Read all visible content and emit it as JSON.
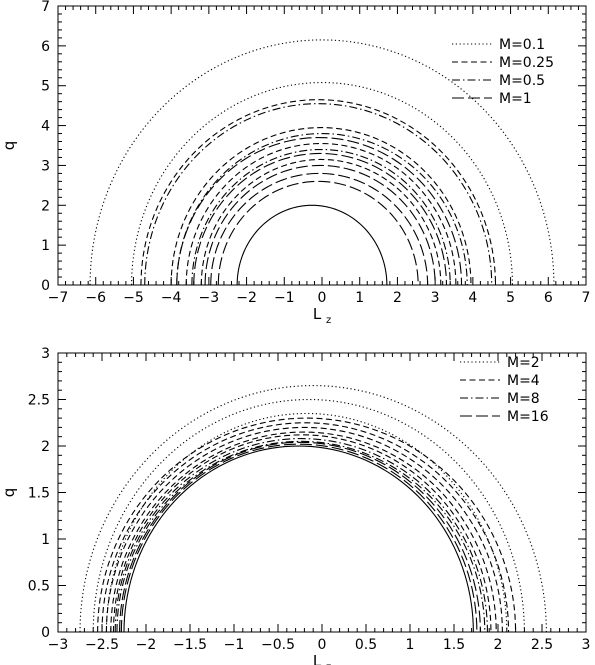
{
  "chart_data": [
    {
      "type": "line",
      "xlabel": "L",
      "xlabel_sub": "z",
      "ylabel": "q",
      "xlim": [
        -7,
        7
      ],
      "ylim": [
        0,
        7
      ],
      "xticks": [
        -7,
        -6,
        -5,
        -4,
        -3,
        -2,
        -1,
        0,
        1,
        2,
        3,
        4,
        5,
        6,
        7
      ],
      "yticks": [
        0,
        1,
        2,
        3,
        4,
        5,
        6,
        7
      ],
      "xtick_labels": [
        "−7",
        "−6",
        "−5",
        "−4",
        "−3",
        "−2",
        "−1",
        "0",
        "1",
        "2",
        "3",
        "4",
        "5",
        "6",
        "7"
      ],
      "ytick_labels": [
        "0",
        "1",
        "2",
        "3",
        "4",
        "5",
        "6",
        "7"
      ],
      "legend_position": "top-right",
      "series": [
        {
          "name": "M=0.1",
          "style": "dotted",
          "curves": [
            {
              "xmin": -6.15,
              "xmax": 6.15,
              "ymax": 6.15
            },
            {
              "xmin": -5.05,
              "xmax": 5.05,
              "ymax": 5.08
            }
          ]
        },
        {
          "name": "M=0.25",
          "style": "dashed",
          "curves": [
            {
              "xmin": -4.8,
              "xmax": 4.6,
              "ymax": 4.65
            },
            {
              "xmin": -4.0,
              "xmax": 3.95,
              "ymax": 3.95
            },
            {
              "xmin": -3.6,
              "xmax": 3.55,
              "ymax": 3.55
            },
            {
              "xmin": -3.2,
              "xmax": 3.15,
              "ymax": 3.15
            }
          ]
        },
        {
          "name": "M=0.5",
          "style": "dashdot",
          "curves": [
            {
              "xmin": -4.7,
              "xmax": 4.5,
              "ymax": 4.55
            },
            {
              "xmin": -3.85,
              "xmax": 3.85,
              "ymax": 3.8
            },
            {
              "xmin": -3.45,
              "xmax": 3.4,
              "ymax": 3.4
            }
          ]
        },
        {
          "name": "M=1",
          "style": "longdash",
          "curves": [
            {
              "xmin": -3.85,
              "xmax": 3.7,
              "ymax": 3.7
            },
            {
              "xmin": -3.4,
              "xmax": 3.3,
              "ymax": 3.3
            },
            {
              "xmin": -3.1,
              "xmax": 3.0,
              "ymax": 3.0
            },
            {
              "xmin": -2.95,
              "xmax": 2.8,
              "ymax": 2.8
            },
            {
              "xmin": -2.75,
              "xmax": 2.55,
              "ymax": 2.6
            }
          ]
        },
        {
          "name": "",
          "style": "solid",
          "curves": [
            {
              "xmin": -2.25,
              "xmax": 1.72,
              "ymax": 2.0
            }
          ]
        }
      ]
    },
    {
      "type": "line",
      "xlabel": "L",
      "xlabel_sub": "z",
      "ylabel": "q",
      "xlim": [
        -3,
        3
      ],
      "ylim": [
        0,
        3
      ],
      "xticks": [
        -3,
        -2.5,
        -2,
        -1.5,
        -1,
        -0.5,
        0,
        0.5,
        1,
        1.5,
        2,
        2.5,
        3
      ],
      "yticks": [
        0,
        0.5,
        1,
        1.5,
        2,
        2.5,
        3
      ],
      "xtick_labels": [
        "−3",
        "−2.5",
        "−2",
        "−1.5",
        "−1",
        "−0.5",
        "0",
        "0.5",
        "1",
        "1.5",
        "2",
        "2.5",
        "3"
      ],
      "ytick_labels": [
        "0",
        "0.5",
        "1",
        "1.5",
        "2",
        "2.5",
        "3"
      ],
      "legend_position": "top-right",
      "series": [
        {
          "name": "M=2",
          "style": "dotted",
          "curves": [
            {
              "xmin": -2.75,
              "xmax": 2.55,
              "ymax": 2.65
            },
            {
              "xmin": -2.6,
              "xmax": 2.3,
              "ymax": 2.5
            },
            {
              "xmin": -2.45,
              "xmax": 2.1,
              "ymax": 2.35
            }
          ]
        },
        {
          "name": "M=4",
          "style": "dashed",
          "curves": [
            {
              "xmin": -2.55,
              "xmax": 2.2,
              "ymax": 2.3
            },
            {
              "xmin": -2.5,
              "xmax": 2.12,
              "ymax": 2.25
            },
            {
              "xmin": -2.45,
              "xmax": 2.05,
              "ymax": 2.2
            },
            {
              "xmin": -2.4,
              "xmax": 1.98,
              "ymax": 2.15
            },
            {
              "xmin": -2.37,
              "xmax": 1.92,
              "ymax": 2.12
            }
          ]
        },
        {
          "name": "M=8",
          "style": "dashdot",
          "curves": [
            {
              "xmin": -2.35,
              "xmax": 1.88,
              "ymax": 2.08
            },
            {
              "xmin": -2.33,
              "xmax": 1.85,
              "ymax": 2.05
            }
          ]
        },
        {
          "name": "M=16",
          "style": "longdash",
          "curves": [
            {
              "xmin": -2.3,
              "xmax": 1.8,
              "ymax": 2.04
            },
            {
              "xmin": -2.28,
              "xmax": 1.76,
              "ymax": 2.02
            }
          ]
        },
        {
          "name": "",
          "style": "solid",
          "curves": [
            {
              "xmin": -2.25,
              "xmax": 1.72,
              "ymax": 2.0
            }
          ]
        }
      ]
    }
  ]
}
